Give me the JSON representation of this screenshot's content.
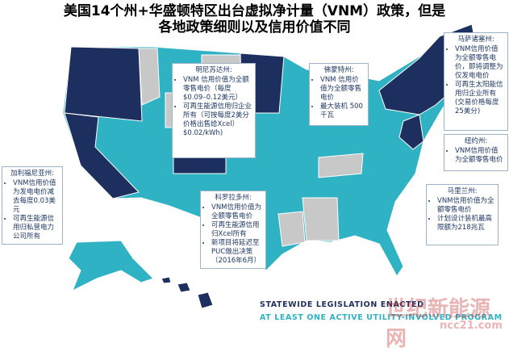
{
  "title": [
    "美国14个州+华盛顿特区出台虚拟净计量（VNM）政策，但是",
    "各地政策细则以及信用价值不同"
  ],
  "callouts": [
    {
      "heading": "明尼苏达州:",
      "items": [
        "VNM 信用价值为全额零售电价（每度$0.09–0.12美元）",
        "可再生能源信用归企业所有（可按每度2美分价格出售给Xcel）$0.02/kWh)"
      ]
    },
    {
      "heading": "佛蒙特州:",
      "items": [
        "VNM 信用价值为全额零售电价",
        "最大装机 500千瓦"
      ]
    },
    {
      "heading": "马萨诸塞州:",
      "items": [
        "VNM信用价值为全额零售电价，即将调整为仅发电电价",
        "可再生太阳能信用归企业所有(交易价格每度25美分)"
      ]
    },
    {
      "heading": "纽约州:",
      "items": [
        "VNM信用价值为全额零售电价"
      ]
    },
    {
      "heading": "马里兰州:",
      "items": [
        "VNM信用价值为全额零售电价",
        "计划设计装机最高限额为218兆瓦"
      ]
    },
    {
      "heading": "加利福尼亚州:",
      "items": [
        "VNM信用价值为发电电价减去每度0.03美元",
        "可再生能源信用归私营电力公司所有"
      ]
    },
    {
      "heading": "科罗拉多州:",
      "items": [
        "VNM信用价值为全额零售电价",
        "可再生能源信用归Xcel所有",
        "新项目将延迟至PUC做出决策（2016年6月）"
      ]
    }
  ],
  "legend": [
    {
      "label": "STATEWIDE LEGISLATION ENACTED",
      "color": "#1d2f5e"
    },
    {
      "label": "AT LEAST ONE ACTIVE UTILITY-INVOLVED PROGRAM",
      "color": "#2fb2c4"
    }
  ],
  "watermark": {
    "name": "世纪新能源网",
    "url": "ncc21.com"
  }
}
